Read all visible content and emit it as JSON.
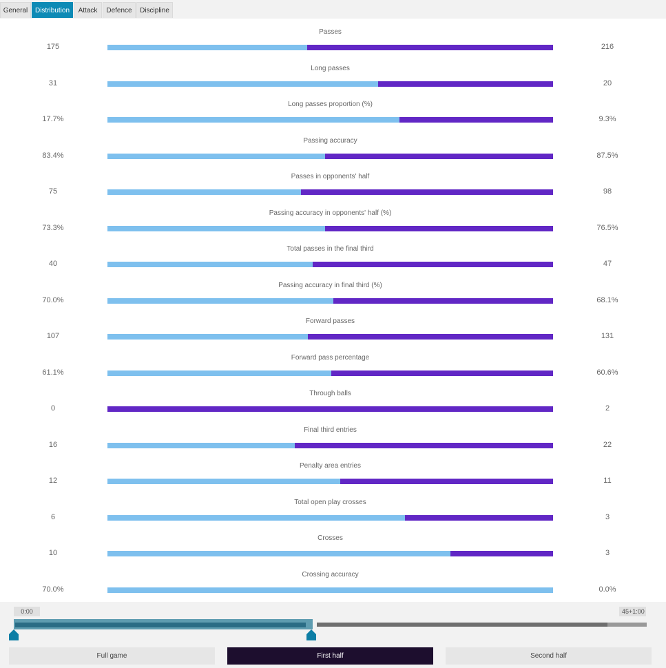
{
  "tabs": [
    {
      "label": "General",
      "active": false
    },
    {
      "label": "Distribution",
      "active": true
    },
    {
      "label": "Attack",
      "active": false
    },
    {
      "label": "Defence",
      "active": false
    },
    {
      "label": "Discipline",
      "active": false
    }
  ],
  "colors": {
    "home_bar": "#7ec0ee",
    "away_bar": "#6127c5",
    "active_tab": "#0d8ab5",
    "active_period": "#1d0e2e"
  },
  "stats": [
    {
      "label": "Passes",
      "home": "175",
      "away": "216",
      "home_share": 0.448
    },
    {
      "label": "Long passes",
      "home": "31",
      "away": "20",
      "home_share": 0.608
    },
    {
      "label": "Long passes proportion (%)",
      "home": "17.7%",
      "away": "9.3%",
      "home_share": 0.656
    },
    {
      "label": "Passing accuracy",
      "home": "83.4%",
      "away": "87.5%",
      "home_share": 0.488
    },
    {
      "label": "Passes in opponents' half",
      "home": "75",
      "away": "98",
      "home_share": 0.434
    },
    {
      "label": "Passing accuracy in opponents' half (%)",
      "home": "73.3%",
      "away": "76.5%",
      "home_share": 0.489
    },
    {
      "label": "Total passes in the final third",
      "home": "40",
      "away": "47",
      "home_share": 0.46
    },
    {
      "label": "Passing accuracy in final third (%)",
      "home": "70.0%",
      "away": "68.1%",
      "home_share": 0.507
    },
    {
      "label": "Forward passes",
      "home": "107",
      "away": "131",
      "home_share": 0.45
    },
    {
      "label": "Forward pass percentage",
      "home": "61.1%",
      "away": "60.6%",
      "home_share": 0.502
    },
    {
      "label": "Through balls",
      "home": "0",
      "away": "2",
      "home_share": 0.0
    },
    {
      "label": "Final third entries",
      "home": "16",
      "away": "22",
      "home_share": 0.421
    },
    {
      "label": "Penalty area entries",
      "home": "12",
      "away": "11",
      "home_share": 0.522
    },
    {
      "label": "Total open play crosses",
      "home": "6",
      "away": "3",
      "home_share": 0.667
    },
    {
      "label": "Crosses",
      "home": "10",
      "away": "3",
      "home_share": 0.769
    },
    {
      "label": "Crossing accuracy",
      "home": "70.0%",
      "away": "0.0%",
      "home_share": 1.0
    }
  ],
  "timeline": {
    "start_label": "0:00",
    "end_label": "45+1:00"
  },
  "periods": [
    {
      "label": "Full game",
      "active": false
    },
    {
      "label": "First half",
      "active": true
    },
    {
      "label": "Second half",
      "active": false
    }
  ]
}
